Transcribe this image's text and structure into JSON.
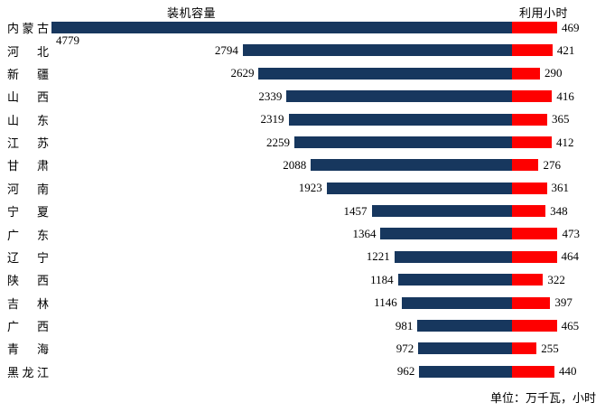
{
  "chart_data": {
    "type": "bar",
    "subtype": "paired-horizontal-diverging",
    "left_header": "装机容量",
    "right_header": "利用小时",
    "unit_note": "单位：万千瓦，小时",
    "categories": [
      "内蒙古",
      "河北",
      "新疆",
      "山西",
      "山东",
      "江苏",
      "甘肃",
      "河南",
      "宁夏",
      "广东",
      "辽宁",
      "陕西",
      "吉林",
      "广西",
      "青海",
      "黑龙江"
    ],
    "series": [
      {
        "name": "装机容量",
        "unit": "万千瓦",
        "direction": "left",
        "color": "#17375e",
        "values": [
          4779,
          2794,
          2629,
          2339,
          2319,
          2259,
          2088,
          1923,
          1457,
          1364,
          1221,
          1184,
          1146,
          981,
          972,
          962
        ]
      },
      {
        "name": "利用小时",
        "unit": "小时",
        "direction": "right",
        "color": "#fe0000",
        "values": [
          469,
          421,
          290,
          416,
          365,
          412,
          276,
          361,
          348,
          473,
          464,
          322,
          397,
          465,
          255,
          440
        ]
      }
    ],
    "layout": {
      "grid": false,
      "axis_lines": false,
      "value_labels": "outside-bar-ends",
      "background": "#ffffff"
    }
  }
}
